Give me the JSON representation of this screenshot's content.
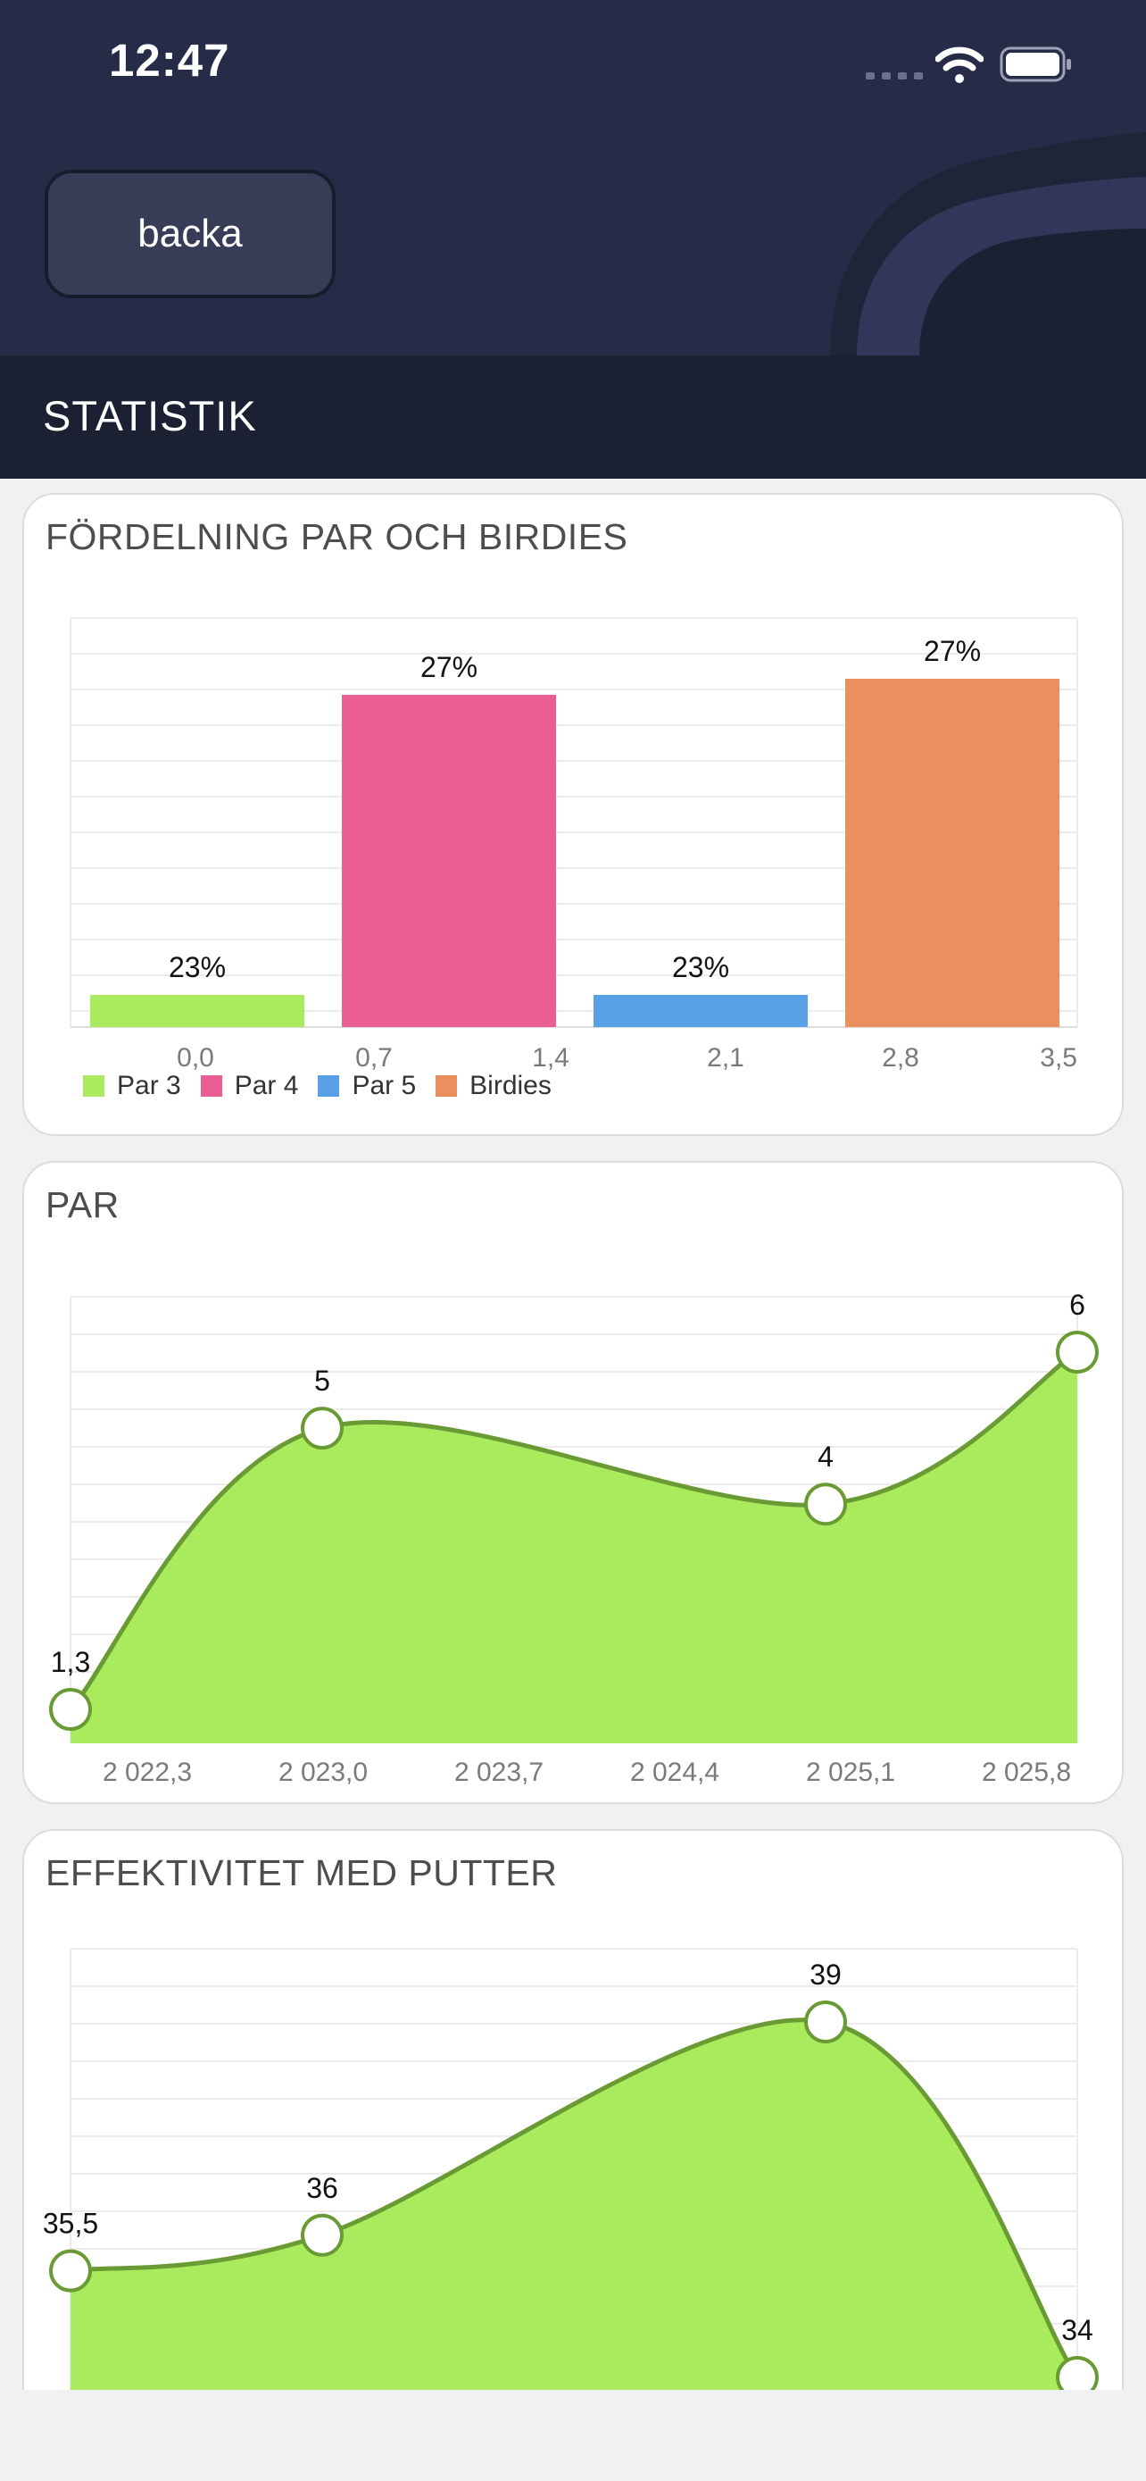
{
  "status_bar": {
    "time": "12:47"
  },
  "header": {
    "back_label": "backa"
  },
  "section": {
    "title": "STATISTIK"
  },
  "colors": {
    "header_bg": "#262c47",
    "section_bar_bg": "#1c2033",
    "accent_green": "#aaeb5e",
    "line_green": "#6a9a34",
    "par4": "#ea5e93",
    "par5": "#5aa0e6",
    "birdies": "#ec8f5e"
  },
  "cards": {
    "distribution": {
      "title": "FÖRDELNING PAR OCH BIRDIES"
    },
    "par": {
      "title": "PAR"
    },
    "putter": {
      "title": "EFFEKTIVITET MED PUTTER"
    }
  },
  "chart_data": [
    {
      "type": "bar",
      "categories": [
        "Par 3",
        "Par 4",
        "Par 5",
        "Birdies"
      ],
      "values": [
        23,
        27,
        23,
        27
      ],
      "labels": [
        "23%",
        "27%",
        "23%",
        "27%"
      ],
      "colors": [
        "#aaeb5e",
        "#ea5e93",
        "#5aa0e6",
        "#ec8f5e"
      ],
      "x_ticks": [
        "0,0",
        "0,7",
        "1,4",
        "2,1",
        "2,8",
        "3,5"
      ],
      "legend": [
        "Par 3",
        "Par 4",
        "Par 5",
        "Birdies"
      ],
      "legend_position": "bottom-left",
      "grid": true
    },
    {
      "type": "area",
      "x": [
        2022.0,
        2023.0,
        2025.0,
        2026.0
      ],
      "values": [
        1.3,
        5,
        4,
        6
      ],
      "labels": [
        "1,3",
        "5",
        "4",
        "6"
      ],
      "x_ticks": [
        "2 022,3",
        "2 023,0",
        "2 023,7",
        "2 024,4",
        "2 025,1",
        "2 025,8"
      ],
      "ylim": [
        1.3,
        6
      ],
      "grid": true
    },
    {
      "type": "area",
      "x": [
        0,
        1,
        3,
        4
      ],
      "values": [
        35.5,
        36,
        39,
        34
      ],
      "labels": [
        "35,5",
        "36",
        "39",
        "34"
      ],
      "ylim": [
        34,
        39
      ],
      "grid": true
    }
  ]
}
